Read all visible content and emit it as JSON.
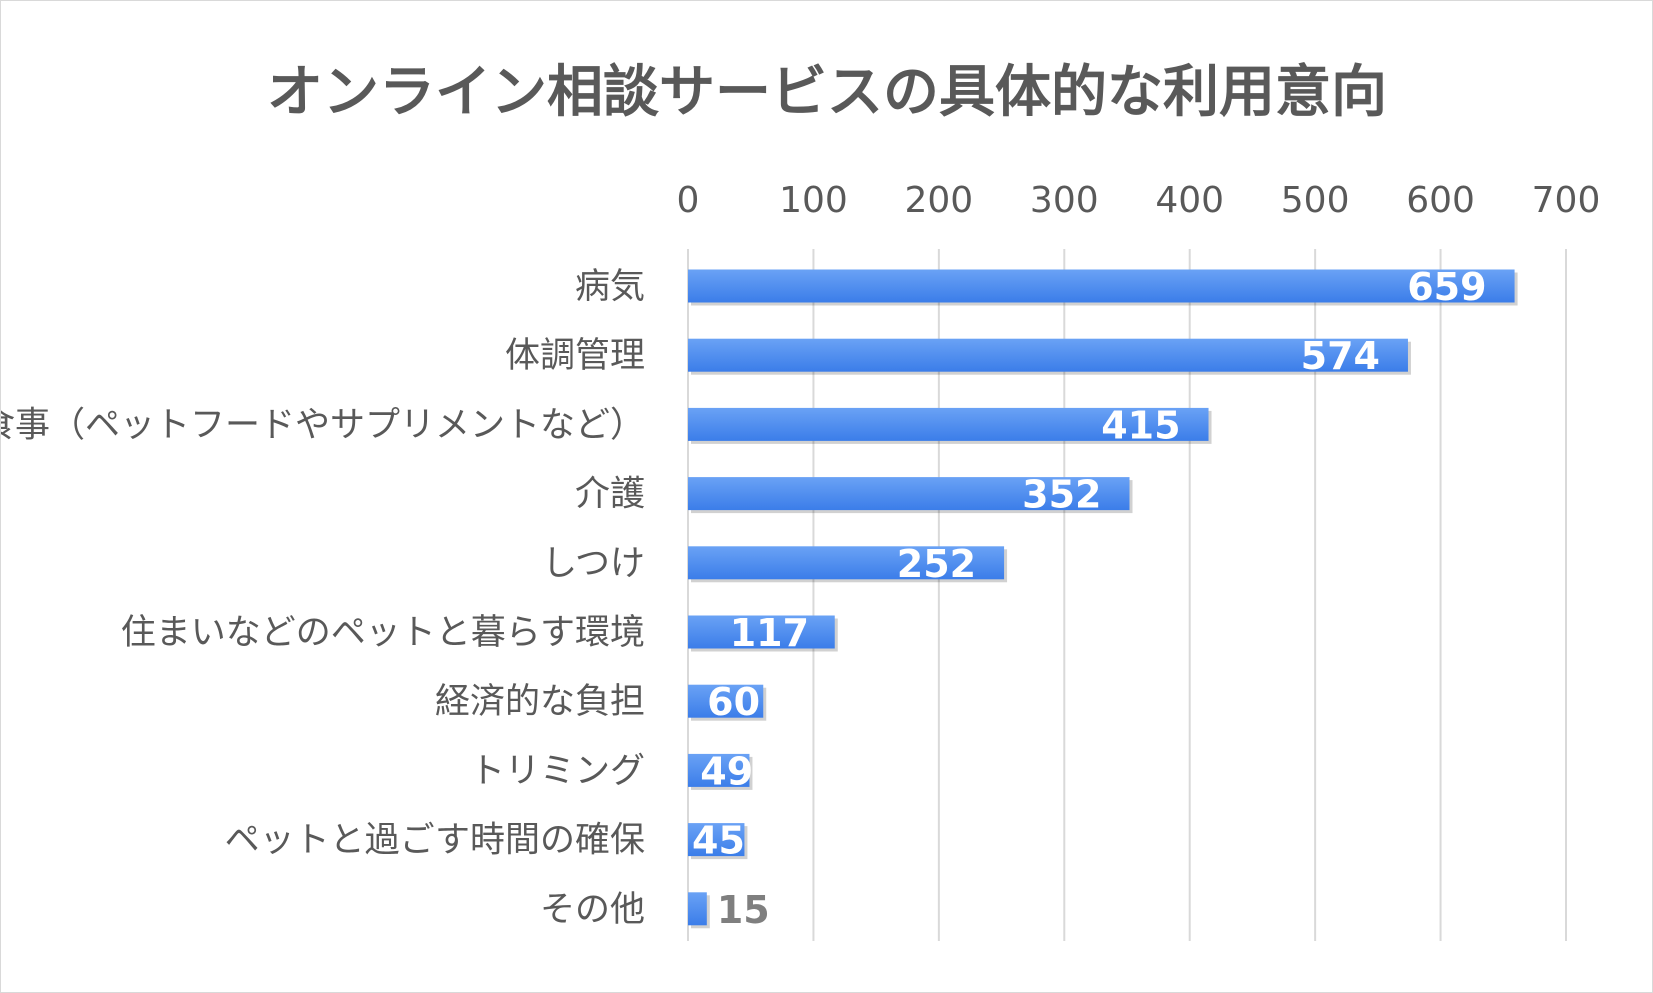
{
  "chart_data": {
    "type": "bar",
    "orientation": "horizontal",
    "title": "オンライン相談サービスの具体的な利用意向",
    "categories": [
      "病気",
      "体調管理",
      "食事（ペットフードやサプリメントなど）",
      "介護",
      "しつけ",
      "住まいなどのペットと暮らす環境",
      "経済的な負担",
      "トリミング",
      "ペットと過ごす時間の確保",
      "その他"
    ],
    "values": [
      659,
      574,
      415,
      352,
      252,
      117,
      60,
      49,
      45,
      15
    ],
    "xlim": [
      0,
      700
    ],
    "xticks": [
      0,
      100,
      200,
      300,
      400,
      500,
      600,
      700
    ],
    "xaxis_position": "top",
    "grid": true,
    "legend": "none",
    "bar_color": "#3b7de9",
    "bar_color_light": "#6aa2f5",
    "label_color_inside": "#ffffff",
    "label_color_outside": "#7f7f7f",
    "grid_color": "#d9d9d9",
    "text_color": "#595959"
  }
}
